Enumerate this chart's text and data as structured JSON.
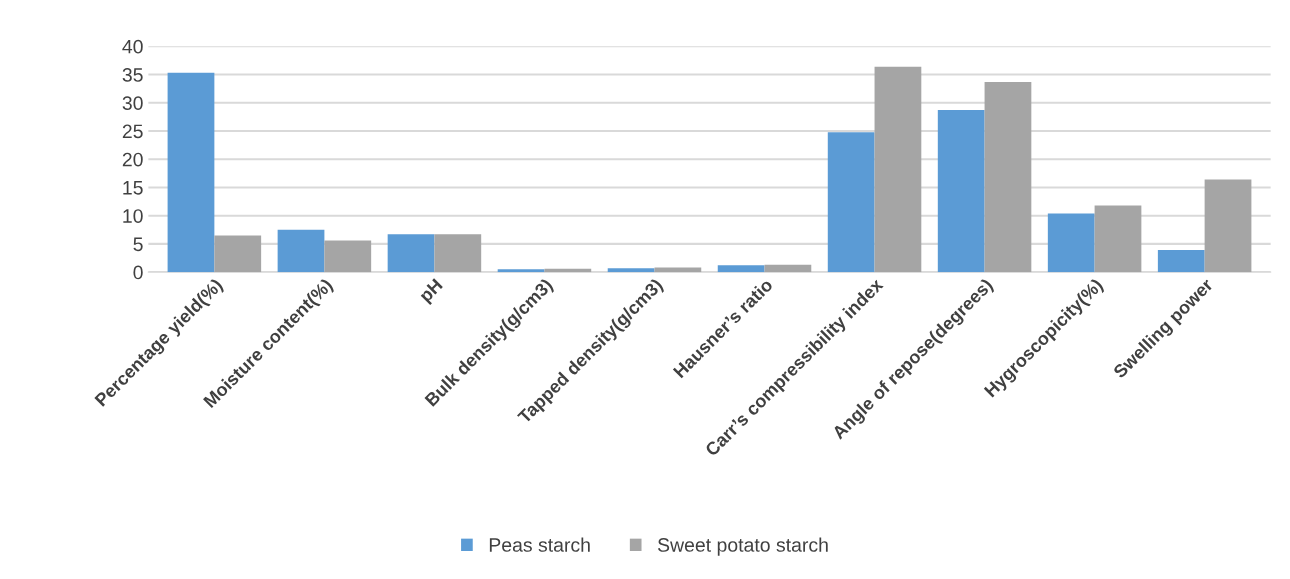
{
  "chart_data": {
    "type": "bar",
    "categories": [
      "Percentage yield(%)",
      "Moisture content(%)",
      "pH",
      "Bulk density(g/cm3)",
      "Tapped density(g/cm3)",
      "Hausner’s ratio",
      "Carr’s compressibility index",
      "Angle of repose(degrees)",
      "Hygroscopicity(%)",
      "Swelling power"
    ],
    "series": [
      {
        "name": "Peas starch",
        "color": "#5b9bd5",
        "values": [
          35.3,
          7.5,
          6.7,
          0.5,
          0.7,
          1.2,
          24.8,
          28.7,
          10.4,
          3.9
        ]
      },
      {
        "name": "Sweet potato starch",
        "color": "#a5a5a5",
        "values": [
          6.5,
          5.6,
          6.7,
          0.6,
          0.8,
          1.3,
          36.4,
          33.7,
          11.8,
          16.4
        ]
      }
    ],
    "ylim": [
      0,
      40
    ],
    "yticks": [
      0,
      5,
      10,
      15,
      20,
      25,
      30,
      35,
      40
    ],
    "grid": "y",
    "legend": "bottom"
  }
}
